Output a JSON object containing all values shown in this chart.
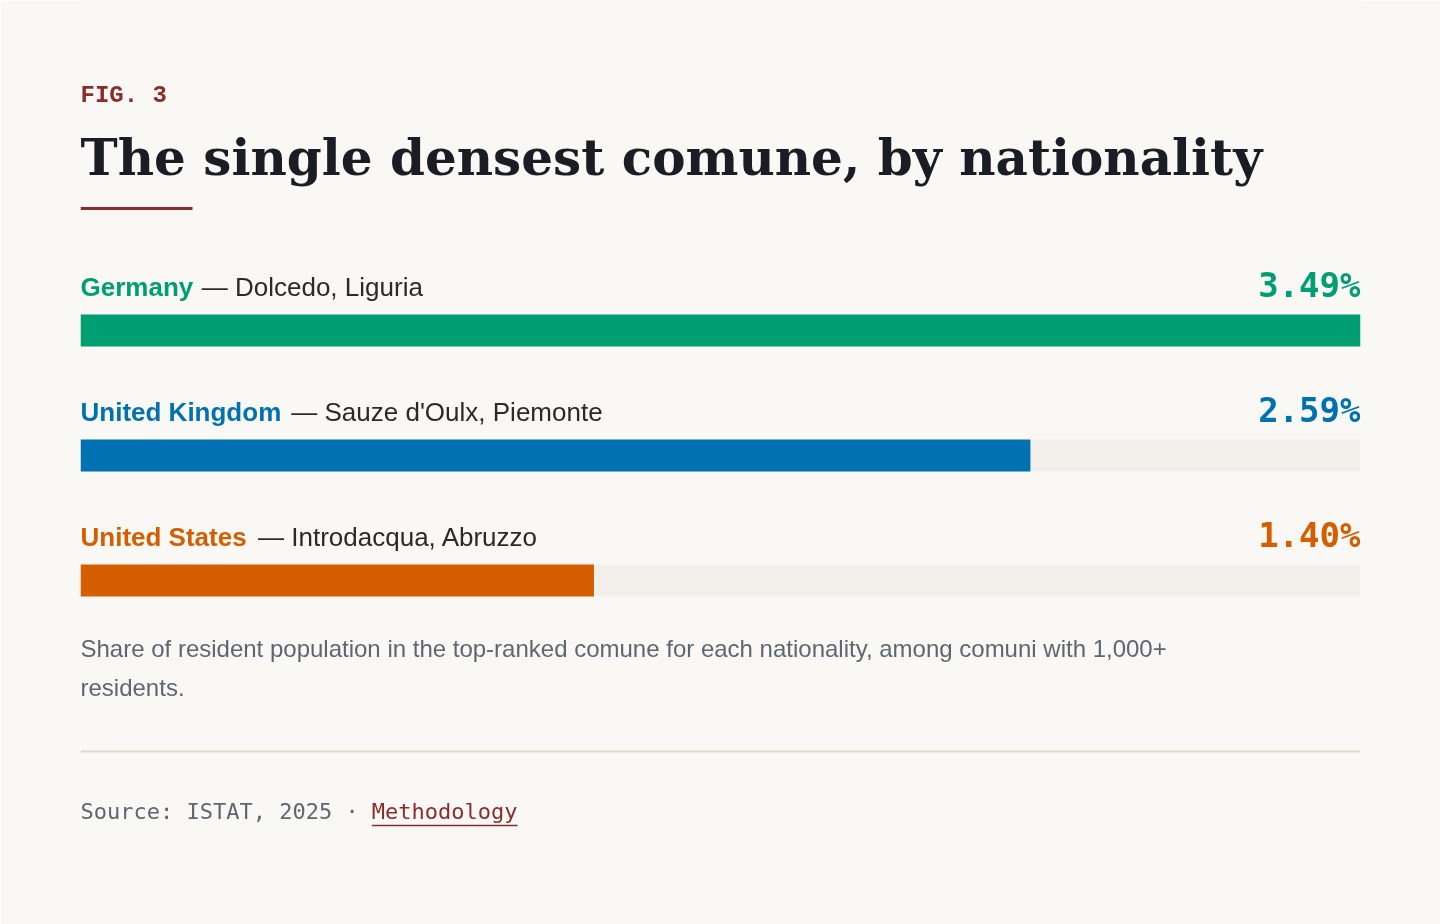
{
  "chart_data": {
    "type": "bar",
    "orientation": "horizontal",
    "subtitle": "FIG. 3",
    "title": "The single densest comune, by nationality",
    "categories": [
      "Germany — Dolcedo, Liguria",
      "United Kingdom — Sauze d'Oulx, Piemonte",
      "United States — Introdacqua, Abruzzo"
    ],
    "values": [
      3.49,
      2.59,
      1.4
    ],
    "colors": [
      "#009e73",
      "#0072b2",
      "#d55e00"
    ],
    "value_labels": [
      "3.49%",
      "2.59%",
      "1.40%"
    ],
    "xlim": [
      0,
      3.49
    ],
    "annotations": [
      "Share of resident population in the top-ranked comune for each nationality, among comuni with 1,000+ residents.",
      "Source: ISTAT, 2025 · ",
      "Methodology"
    ]
  }
}
